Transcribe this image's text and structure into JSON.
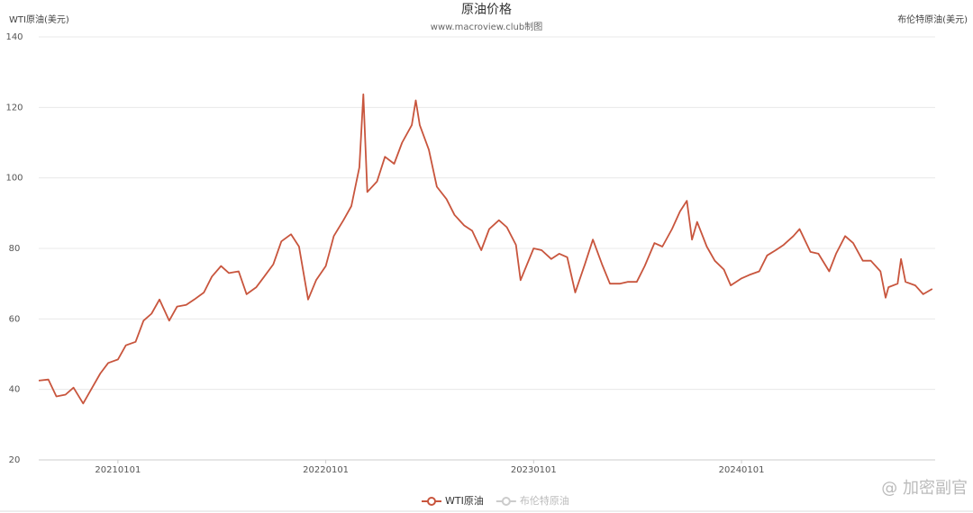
{
  "chart_data": {
    "type": "line",
    "title": "原油价格",
    "subtitle": "www.macroview.club制图",
    "y_label": "WTI原油(美元)",
    "y2_label": "布伦特原油(美元)",
    "watermark": "@ 加密副官",
    "xlim": [
      "20200815",
      "20241206"
    ],
    "xticks": [
      "20210101",
      "20220101",
      "20230101",
      "20240101"
    ],
    "ylim": [
      20,
      140
    ],
    "yticks": [
      20,
      40,
      60,
      80,
      100,
      120,
      140
    ],
    "grid": true,
    "x": [
      "20200815",
      "20200901",
      "20200915",
      "20201001",
      "20201015",
      "20201101",
      "20201115",
      "20201201",
      "20201215",
      "20210101",
      "20210115",
      "20210201",
      "20210215",
      "20210301",
      "20210315",
      "20210401",
      "20210415",
      "20210501",
      "20210515",
      "20210601",
      "20210615",
      "20210701",
      "20210715",
      "20210801",
      "20210815",
      "20210901",
      "20210915",
      "20211001",
      "20211015",
      "20211101",
      "20211115",
      "20211201",
      "20211215",
      "20220101",
      "20220115",
      "20220201",
      "20220215",
      "20220301",
      "20220308",
      "20220315",
      "20220401",
      "20220415",
      "20220501",
      "20220515",
      "20220601",
      "20220608",
      "20220615",
      "20220701",
      "20220715",
      "20220801",
      "20220815",
      "20220901",
      "20220915",
      "20221001",
      "20221015",
      "20221101",
      "20221115",
      "20221201",
      "20221209",
      "20230101",
      "20230115",
      "20230201",
      "20230215",
      "20230301",
      "20230315",
      "20230401",
      "20230415",
      "20230501",
      "20230515",
      "20230601",
      "20230615",
      "20230701",
      "20230715",
      "20230801",
      "20230815",
      "20230901",
      "20230915",
      "20230927",
      "20231006",
      "20231015",
      "20231101",
      "20231115",
      "20231201",
      "20231213",
      "20240101",
      "20240115",
      "20240201",
      "20240215",
      "20240301",
      "20240315",
      "20240401",
      "20240412",
      "20240501",
      "20240515",
      "20240603",
      "20240615",
      "20240701",
      "20240715",
      "20240801",
      "20240815",
      "20240901",
      "20240910",
      "20240915",
      "20241001",
      "20241007",
      "20241015",
      "20241101",
      "20241115",
      "20241201"
    ],
    "series": [
      {
        "name": "WTI原油",
        "color": "#c8553d",
        "values": [
          42.5,
          42.8,
          38,
          38.5,
          40.5,
          36,
          40,
          44.5,
          47.5,
          48.5,
          52.5,
          53.5,
          59.5,
          61.5,
          65.5,
          59.5,
          63.5,
          64,
          65.5,
          67.5,
          72,
          75,
          73,
          73.5,
          67,
          69,
          72,
          75.5,
          82,
          84,
          80.5,
          65.5,
          71,
          75,
          83.5,
          88,
          92,
          103,
          123.7,
          96,
          99,
          106,
          104,
          110,
          115,
          122,
          115,
          108,
          97.5,
          94,
          89.5,
          86.5,
          85,
          79.5,
          85.5,
          88,
          86,
          81,
          71,
          80,
          79.5,
          77,
          78.5,
          77.5,
          67.5,
          75.5,
          82.5,
          75.5,
          70,
          70,
          70.5,
          70.5,
          75,
          81.5,
          80.5,
          85.5,
          90.5,
          93.5,
          82.5,
          87.5,
          80.5,
          76.5,
          74,
          69.5,
          71.5,
          72.5,
          73.5,
          78,
          79.5,
          81,
          83.5,
          85.5,
          79,
          78.5,
          73.5,
          78.5,
          83.5,
          81.5,
          76.5,
          76.5,
          73.5,
          66,
          69,
          70,
          77,
          70.5,
          69.5,
          67,
          68.5
        ]
      },
      {
        "name": "布伦特原油",
        "color": "#cccccc",
        "visible": false
      }
    ]
  }
}
